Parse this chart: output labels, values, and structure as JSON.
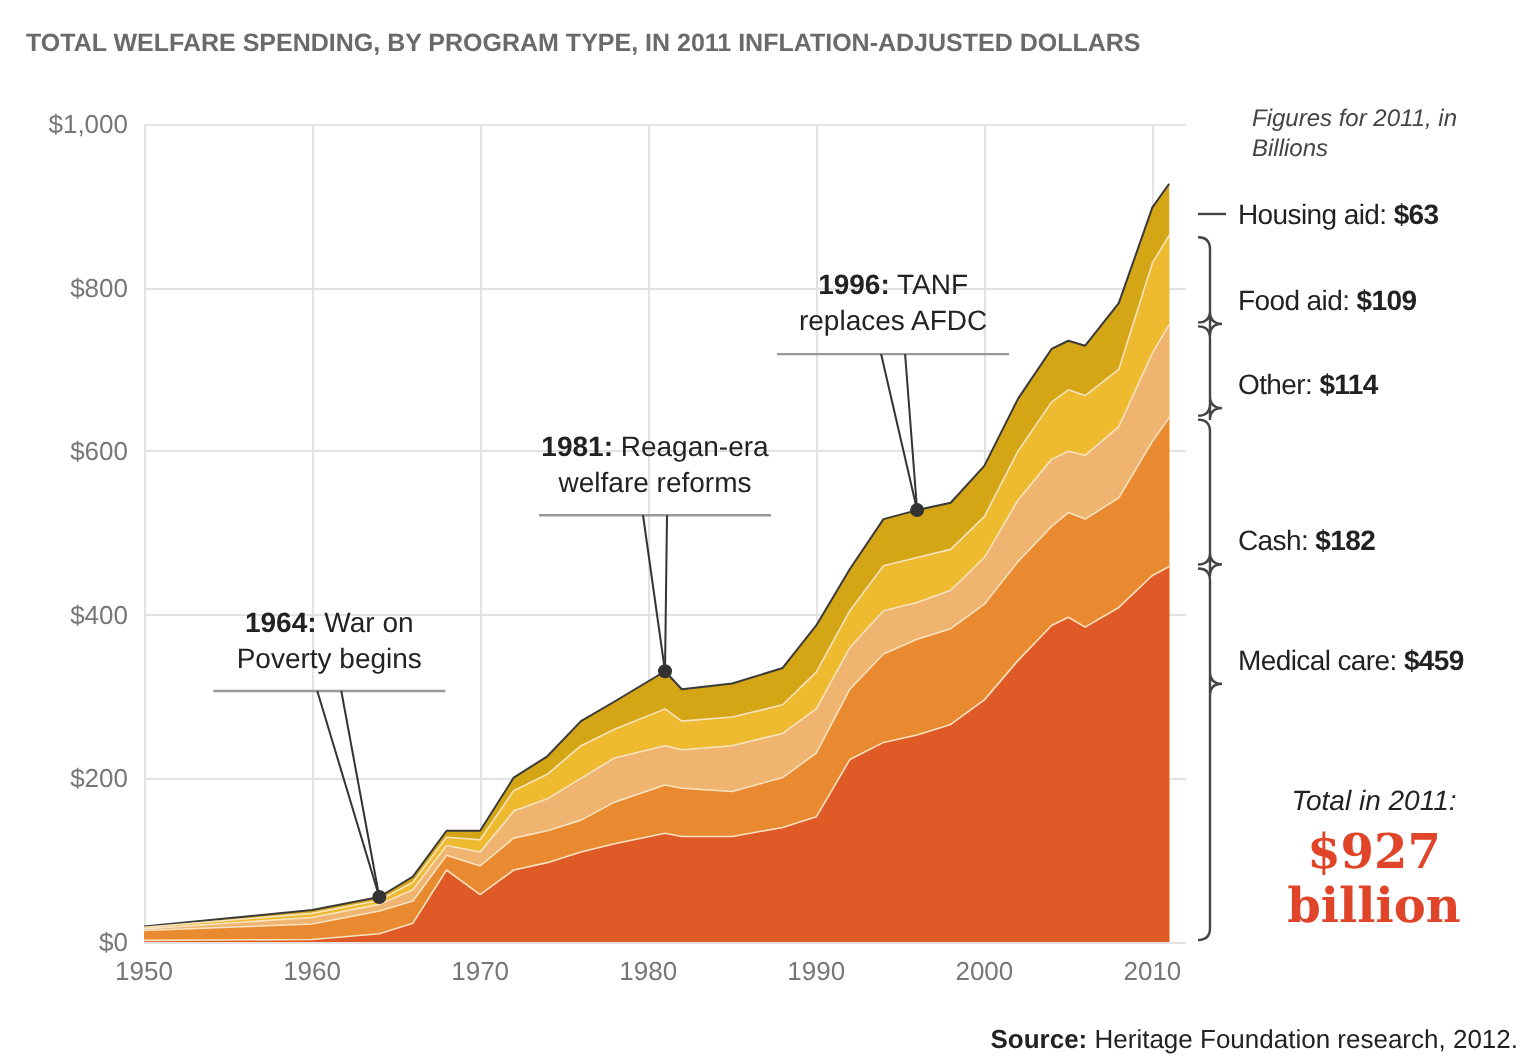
{
  "chart_data": {
    "type": "area",
    "stacked": true,
    "title": "TOTAL WELFARE SPENDING, BY PROGRAM TYPE, IN 2011 INFLATION-ADJUSTED DOLLARS",
    "x": [
      1950,
      1960,
      1964,
      1966,
      1968,
      1970,
      1972,
      1974,
      1976,
      1978,
      1981,
      1982,
      1985,
      1988,
      1990,
      1992,
      1994,
      1996,
      1998,
      2000,
      2002,
      2004,
      2005,
      2006,
      2008,
      2010,
      2011
    ],
    "series": [
      {
        "color": "#e05a28",
        "values": [
          2,
          3,
          10,
          23,
          88,
          58,
          88,
          97,
          110,
          120,
          133,
          129,
          129,
          140,
          153,
          223,
          244,
          253,
          266,
          296,
          344,
          387,
          397,
          385,
          409,
          448,
          459
        ]
      },
      {
        "color": "#ea8a30",
        "values": [
          12,
          19,
          28,
          27,
          18,
          35,
          39,
          39,
          39,
          51,
          59,
          59,
          55,
          61,
          78,
          86,
          108,
          117,
          117,
          117,
          121,
          121,
          128,
          132,
          134,
          164,
          182
        ]
      },
      {
        "color": "#efb470",
        "values": [
          2,
          8,
          8,
          14,
          12,
          17,
          33,
          39,
          51,
          54,
          48,
          47,
          56,
          54,
          54,
          51,
          53,
          45,
          47,
          57,
          75,
          82,
          75,
          78,
          87,
          108,
          114
        ]
      },
      {
        "color": "#eebb30",
        "values": [
          2,
          5,
          5,
          9,
          10,
          15,
          25,
          30,
          40,
          35,
          45,
          35,
          35,
          35,
          45,
          45,
          55,
          55,
          50,
          50,
          60,
          70,
          75,
          73,
          70,
          110,
          109
        ]
      },
      {
        "color": "#d4a514",
        "values": [
          1,
          4,
          4,
          7,
          8,
          11,
          16,
          22,
          30,
          34,
          46,
          39,
          41,
          45,
          57,
          51,
          57,
          58,
          57,
          62,
          64,
          65,
          60,
          61,
          81,
          68,
          63
        ]
      }
    ],
    "xlim": [
      1950,
      2012
    ],
    "xticks": [
      1950,
      1960,
      1970,
      1980,
      1990,
      2000,
      2010
    ],
    "ylim": [
      0,
      1000
    ],
    "yticks": [
      {
        "value": 0,
        "label": "$0"
      },
      {
        "value": 200,
        "label": "$200"
      },
      {
        "value": 400,
        "label": "$400"
      },
      {
        "value": 600,
        "label": "$600"
      },
      {
        "value": 800,
        "label": "$800"
      },
      {
        "value": 1000,
        "label": "$1,000"
      }
    ],
    "grid": true,
    "annotations": [
      {
        "text": "1964: War on Poverty begins",
        "x": 1964,
        "y": 55
      },
      {
        "text": "1981: Reagan-era welfare reforms",
        "x": 1981,
        "y": 331
      },
      {
        "text": "1996: TANF replaces AFDC",
        "x": 1996,
        "y": 528
      },
      {
        "text": "Medical care: $459",
        "x": 2011,
        "y": 345
      },
      {
        "text": "Cash: $182",
        "x": 2011,
        "y": 491
      },
      {
        "text": "Other: $114",
        "x": 2011,
        "y": 682
      },
      {
        "text": "Food aid: $109",
        "x": 2011,
        "y": 785
      },
      {
        "text": "Housing aid: $63",
        "x": 2011,
        "y": 890
      },
      "Figures for 2011, in Billions",
      "Total in 2011:",
      "$927 billion",
      "Source: Heritage Foundation research, 2012."
    ]
  }
}
